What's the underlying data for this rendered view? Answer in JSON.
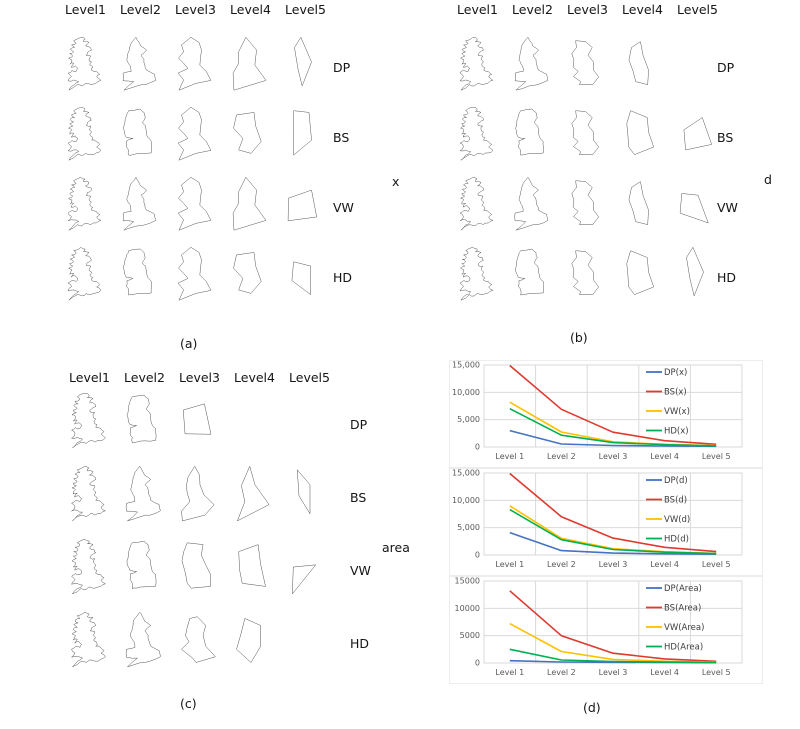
{
  "panels": {
    "a": {
      "caption": "(a)",
      "metric": "x",
      "levels": [
        "Level1",
        "Level2",
        "Level3",
        "Level4",
        "Level5"
      ],
      "methods": [
        "DP",
        "BS",
        "VW",
        "HD"
      ],
      "present": [
        [
          1,
          1,
          1,
          1,
          1
        ],
        [
          1,
          1,
          1,
          1,
          1
        ],
        [
          1,
          1,
          1,
          1,
          1
        ],
        [
          1,
          1,
          1,
          1,
          1
        ]
      ]
    },
    "b": {
      "caption": "(b)",
      "metric": "d",
      "levels": [
        "Level1",
        "Level2",
        "Level3",
        "Level4",
        "Level5"
      ],
      "methods": [
        "DP",
        "BS",
        "VW",
        "HD"
      ],
      "present": [
        [
          1,
          1,
          1,
          1,
          0
        ],
        [
          1,
          1,
          1,
          1,
          1
        ],
        [
          1,
          1,
          1,
          1,
          1
        ],
        [
          1,
          1,
          1,
          1,
          1
        ]
      ]
    },
    "c": {
      "caption": "(c)",
      "metric": "area",
      "levels": [
        "Level1",
        "Level2",
        "Level3",
        "Level4",
        "Level5"
      ],
      "methods": [
        "DP",
        "BS",
        "VW",
        "HD"
      ],
      "present": [
        [
          1,
          1,
          1,
          0,
          0
        ],
        [
          1,
          1,
          1,
          1,
          1
        ],
        [
          1,
          1,
          1,
          1,
          1
        ],
        [
          1,
          1,
          1,
          1,
          0
        ]
      ]
    },
    "d": {
      "caption": "(d)"
    }
  },
  "map_outline": [
    [
      38,
      3
    ],
    [
      48,
      7
    ],
    [
      44,
      13
    ],
    [
      57,
      15
    ],
    [
      49,
      23
    ],
    [
      60,
      27
    ],
    [
      63,
      33
    ],
    [
      53,
      39
    ],
    [
      50,
      45
    ],
    [
      61,
      47
    ],
    [
      57,
      55
    ],
    [
      63,
      61
    ],
    [
      59,
      68
    ],
    [
      66,
      74
    ],
    [
      63,
      80
    ],
    [
      74,
      83
    ],
    [
      82,
      90
    ],
    [
      75,
      96
    ],
    [
      85,
      104
    ],
    [
      74,
      110
    ],
    [
      61,
      114
    ],
    [
      50,
      111
    ],
    [
      41,
      117
    ],
    [
      30,
      114
    ],
    [
      10,
      127
    ],
    [
      21,
      115
    ],
    [
      33,
      107
    ],
    [
      21,
      103
    ],
    [
      8,
      105
    ],
    [
      16,
      95
    ],
    [
      8,
      87
    ],
    [
      17,
      81
    ],
    [
      27,
      83
    ],
    [
      31,
      76
    ],
    [
      25,
      70
    ],
    [
      15,
      73
    ],
    [
      21,
      64
    ],
    [
      12,
      66
    ],
    [
      17,
      56
    ],
    [
      9,
      52
    ],
    [
      19,
      47
    ],
    [
      12,
      41
    ],
    [
      21,
      37
    ],
    [
      13,
      31
    ],
    [
      23,
      27
    ],
    [
      16,
      21
    ],
    [
      27,
      17
    ],
    [
      21,
      11
    ]
  ],
  "colors": {
    "DP": "#4472c4",
    "BS": "#e0392f",
    "VW": "#ffc000",
    "HD": "#00b050",
    "grid": "#d9d9d9",
    "tick": "#595959",
    "map_stroke": "#4a4a4a"
  },
  "chart_data": [
    {
      "type": "line",
      "metric": "x",
      "categories": [
        "Level 1",
        "Level 2",
        "Level 3",
        "Level 4",
        "Level 5"
      ],
      "series": [
        {
          "name": "DP(x)",
          "color_key": "DP",
          "values": [
            3000,
            550,
            280,
            180,
            120
          ]
        },
        {
          "name": "BS(x)",
          "color_key": "BS",
          "values": [
            14900,
            6900,
            2700,
            1150,
            500
          ]
        },
        {
          "name": "VW(x)",
          "color_key": "VW",
          "values": [
            8200,
            2750,
            950,
            500,
            260
          ]
        },
        {
          "name": "HD(x)",
          "color_key": "HD",
          "values": [
            7000,
            2150,
            800,
            420,
            210
          ]
        }
      ],
      "ylim": [
        0,
        15000
      ],
      "ytick_values": [
        0,
        5000,
        10000,
        15000
      ],
      "ytick_labels": [
        "0",
        "5,000",
        "10,000",
        "15,000"
      ],
      "grid": true,
      "legend_position": "inside-right"
    },
    {
      "type": "line",
      "metric": "d",
      "categories": [
        "Level 1",
        "Level 2",
        "Level 3",
        "Level 4",
        "Level 5"
      ],
      "series": [
        {
          "name": "DP(d)",
          "color_key": "DP",
          "values": [
            4100,
            800,
            350,
            220,
            140
          ]
        },
        {
          "name": "BS(d)",
          "color_key": "BS",
          "values": [
            14900,
            7000,
            3100,
            1400,
            620
          ]
        },
        {
          "name": "VW(d)",
          "color_key": "VW",
          "values": [
            9000,
            3050,
            1150,
            600,
            300
          ]
        },
        {
          "name": "HD(d)",
          "color_key": "HD",
          "values": [
            8300,
            2800,
            1000,
            520,
            260
          ]
        }
      ],
      "ylim": [
        0,
        15000
      ],
      "ytick_values": [
        0,
        5000,
        10000,
        15000
      ],
      "ytick_labels": [
        "0",
        "5,000",
        "10,000",
        "15,000"
      ],
      "grid": true,
      "legend_position": "inside-right"
    },
    {
      "type": "line",
      "metric": "Area",
      "categories": [
        "Level 1",
        "Level 2",
        "Level 3",
        "Level 4",
        "Level 5"
      ],
      "series": [
        {
          "name": "DP(Area)",
          "color_key": "DP",
          "values": [
            420,
            180,
            120,
            90,
            60
          ]
        },
        {
          "name": "BS(Area)",
          "color_key": "BS",
          "values": [
            13200,
            5000,
            1800,
            750,
            320
          ]
        },
        {
          "name": "VW(Area)",
          "color_key": "VW",
          "values": [
            7200,
            2100,
            650,
            320,
            160
          ]
        },
        {
          "name": "HD(Area)",
          "color_key": "HD",
          "values": [
            2500,
            550,
            280,
            170,
            110
          ]
        }
      ],
      "ylim": [
        0,
        15000
      ],
      "ytick_values": [
        0,
        5000,
        10000,
        15000
      ],
      "ytick_labels": [
        "0",
        "5000",
        "10000",
        "15000"
      ],
      "grid": true,
      "legend_position": "inside-right"
    }
  ]
}
